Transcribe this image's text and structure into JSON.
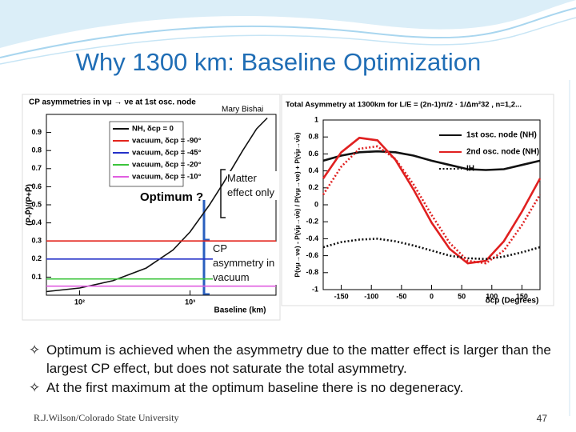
{
  "title": "Why 1300 km: Baseline Optimization",
  "chart_data": [
    {
      "type": "line",
      "title": "CP asymmetries in νμ → νe at 1st osc. node",
      "x_label": "Baseline (km)",
      "y_label": "(P-P̄)/(P+P̄)",
      "x_log": true,
      "xlim": [
        50,
        6000
      ],
      "ylim": [
        0,
        1
      ],
      "xticks": [
        {
          "value": 100,
          "label": "10²"
        },
        {
          "value": 1000,
          "label": "10³"
        }
      ],
      "yticks": [
        0.1,
        0.2,
        0.3,
        0.4,
        0.5,
        0.6,
        0.7,
        0.8,
        0.9
      ],
      "legend": "upper left",
      "series": [
        {
          "name": "NH, δcp = 0",
          "color": "#111111",
          "x": [
            50,
            100,
            200,
            400,
            700,
            1000,
            1500,
            2000,
            3000,
            4000,
            5000
          ],
          "values": [
            0.02,
            0.04,
            0.08,
            0.15,
            0.25,
            0.35,
            0.5,
            0.62,
            0.8,
            0.92,
            0.98
          ]
        },
        {
          "name": "vacuum, δcp = -90°",
          "color": "#e3241c",
          "x": [
            50,
            6000
          ],
          "values": [
            0.3,
            0.3
          ]
        },
        {
          "name": "vacuum, δcp = -45°",
          "color": "#2430c8",
          "x": [
            50,
            6000
          ],
          "values": [
            0.2,
            0.2
          ]
        },
        {
          "name": "vacuum, δcp = -20°",
          "color": "#3cc43c",
          "x": [
            50,
            6000
          ],
          "values": [
            0.09,
            0.09
          ]
        },
        {
          "name": "vacuum, δcp = -10°",
          "color": "#e05ee0",
          "x": [
            50,
            6000
          ],
          "values": [
            0.05,
            0.05
          ]
        }
      ],
      "annotations": [
        "Optimum ?",
        "Mary Bishai",
        "Matter effect only",
        "CP asymmetry in vacuum"
      ]
    },
    {
      "type": "line",
      "title": "Total Asymmetry at 1300km for L/E = (2n-1)π/2 · 1/Δm²32 , n=1,2...",
      "x_label": "δcp (Degrees)",
      "y_label": "P(νμ→νe) - P(ν̄μ→ν̄e) / P(νμ→νe) + P(ν̄μ→ν̄e)",
      "xlim": [
        -180,
        180
      ],
      "ylim": [
        -1,
        1
      ],
      "xticks": [
        -150,
        -100,
        -50,
        0,
        50,
        100,
        150
      ],
      "yticks": [
        -1,
        -0.8,
        -0.6,
        -0.4,
        -0.2,
        0,
        0.2,
        0.4,
        0.6,
        0.8,
        1
      ],
      "legend": "upper right",
      "x": [
        -180,
        -150,
        -120,
        -90,
        -60,
        -30,
        0,
        30,
        60,
        90,
        120,
        150,
        180
      ],
      "series": [
        {
          "name": "1st osc. node (NH)",
          "color": "#111111",
          "dash": "solid",
          "values": [
            0.52,
            0.58,
            0.62,
            0.63,
            0.62,
            0.58,
            0.52,
            0.47,
            0.42,
            0.41,
            0.42,
            0.47,
            0.52
          ]
        },
        {
          "name": "2nd osc. node (NH)",
          "color": "#e02020",
          "dash": "solid",
          "values": [
            0.31,
            0.62,
            0.79,
            0.76,
            0.53,
            0.18,
            -0.21,
            -0.52,
            -0.69,
            -0.66,
            -0.43,
            -0.08,
            0.31
          ]
        },
        {
          "name": "IH",
          "color": "#111111",
          "dash": "dotted",
          "values": [
            -0.5,
            -0.44,
            -0.41,
            -0.4,
            -0.43,
            -0.48,
            -0.54,
            -0.6,
            -0.63,
            -0.64,
            -0.61,
            -0.56,
            -0.5
          ]
        },
        {
          "color": "#e02020",
          "dash": "dotted",
          "values": [
            0.12,
            0.45,
            0.66,
            0.69,
            0.54,
            0.24,
            -0.12,
            -0.45,
            -0.66,
            -0.69,
            -0.54,
            -0.24,
            0.12
          ]
        }
      ]
    }
  ],
  "bullets": [
    "Optimum is achieved when the asymmetry due to the matter effect is larger than the largest CP effect, but does not saturate the total asymmetry.",
    "At the first maximum at the optimum baseline there is no degeneracy."
  ],
  "footer": {
    "author": "R.J.Wilson/Colorado State University",
    "page": "47"
  }
}
